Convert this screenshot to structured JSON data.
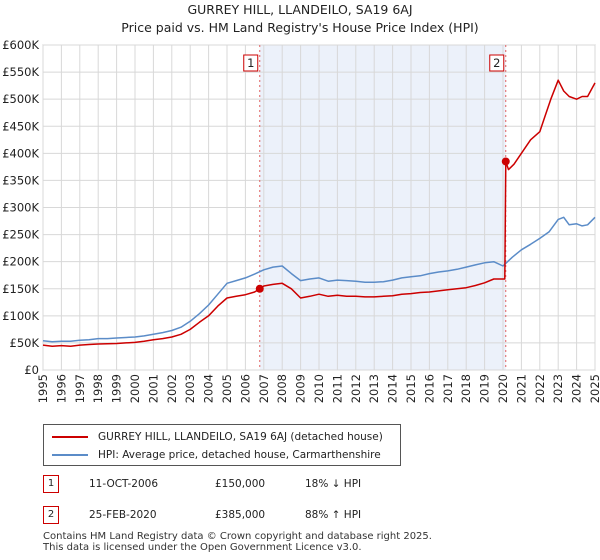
{
  "chart_data": {
    "type": "line",
    "title": "GURREY HILL, LLANDEILO, SA19 6AJ",
    "subtitle": "Price paid vs. HM Land Registry's House Price Index (HPI)",
    "xlim": [
      1995,
      2025
    ],
    "ylim": [
      0,
      600000
    ],
    "x_ticks": [
      "1995",
      "1996",
      "1997",
      "1998",
      "1999",
      "2000",
      "2001",
      "2002",
      "2003",
      "2004",
      "2005",
      "2006",
      "2007",
      "2008",
      "2009",
      "2010",
      "2011",
      "2012",
      "2013",
      "2014",
      "2015",
      "2016",
      "2017",
      "2018",
      "2019",
      "2020",
      "2021",
      "2022",
      "2023",
      "2024",
      "2025"
    ],
    "y_ticks": [
      {
        "value": 0,
        "label": "£0"
      },
      {
        "value": 50000,
        "label": "£50K"
      },
      {
        "value": 100000,
        "label": "£100K"
      },
      {
        "value": 150000,
        "label": "£150K"
      },
      {
        "value": 200000,
        "label": "£200K"
      },
      {
        "value": 250000,
        "label": "£250K"
      },
      {
        "value": 300000,
        "label": "£300K"
      },
      {
        "value": 350000,
        "label": "£350K"
      },
      {
        "value": 400000,
        "label": "£400K"
      },
      {
        "value": 450000,
        "label": "£450K"
      },
      {
        "value": 500000,
        "label": "£500K"
      },
      {
        "value": 550000,
        "label": "£550K"
      },
      {
        "value": 600000,
        "label": "£600K"
      }
    ],
    "grid": true,
    "shaded_region": [
      2006.78,
      2020.15
    ],
    "series": [
      {
        "name": "GURREY HILL, LLANDEILO, SA19 6AJ (detached house)",
        "color": "#cc0000",
        "x": [
          1995,
          1995.5,
          1996,
          1996.5,
          1997,
          1997.5,
          1998,
          1998.5,
          1999,
          1999.5,
          2000,
          2000.5,
          2001,
          2001.5,
          2002,
          2002.5,
          2003,
          2003.5,
          2004,
          2004.5,
          2005,
          2005.5,
          2006,
          2006.5,
          2006.78,
          2007,
          2007.5,
          2008,
          2008.5,
          2009,
          2009.5,
          2010,
          2010.5,
          2011,
          2011.5,
          2012,
          2012.5,
          2013,
          2013.5,
          2014,
          2014.5,
          2015,
          2015.5,
          2016,
          2016.5,
          2017,
          2017.5,
          2018,
          2018.5,
          2019,
          2019.5,
          2020.1,
          2020.15,
          2020.3,
          2020.6,
          2021,
          2021.5,
          2022,
          2022.3,
          2022.6,
          2023,
          2023.3,
          2023.6,
          2024,
          2024.3,
          2024.6,
          2025
        ],
        "y": [
          46000,
          44000,
          45000,
          44000,
          46000,
          47000,
          48000,
          48500,
          49000,
          50000,
          51000,
          53000,
          56000,
          58000,
          61000,
          66000,
          75000,
          88000,
          100000,
          118000,
          133000,
          136000,
          139000,
          144000,
          150000,
          155000,
          158000,
          160000,
          150000,
          133000,
          136000,
          140000,
          136000,
          138000,
          136000,
          136000,
          135000,
          135000,
          136000,
          137000,
          140000,
          141000,
          143000,
          144000,
          146000,
          148000,
          150000,
          152000,
          156000,
          161000,
          168000,
          168000,
          385000,
          370000,
          380000,
          400000,
          425000,
          440000,
          470000,
          500000,
          535000,
          515000,
          505000,
          500000,
          505000,
          505000,
          530000
        ]
      },
      {
        "name": "HPI: Average price, detached house, Carmarthenshire",
        "color": "#5b8cc8",
        "x": [
          1995,
          1995.5,
          1996,
          1996.5,
          1997,
          1997.5,
          1998,
          1998.5,
          1999,
          1999.5,
          2000,
          2000.5,
          2001,
          2001.5,
          2002,
          2002.5,
          2003,
          2003.5,
          2004,
          2004.5,
          2005,
          2005.5,
          2006,
          2006.5,
          2007,
          2007.5,
          2008,
          2008.5,
          2009,
          2009.5,
          2010,
          2010.5,
          2011,
          2011.5,
          2012,
          2012.5,
          2013,
          2013.5,
          2014,
          2014.5,
          2015,
          2015.5,
          2016,
          2016.5,
          2017,
          2017.5,
          2018,
          2018.5,
          2019,
          2019.5,
          2020,
          2020.5,
          2021,
          2021.5,
          2022,
          2022.5,
          2023,
          2023.3,
          2023.6,
          2024,
          2024.3,
          2024.6,
          2025
        ],
        "y": [
          54000,
          52000,
          53000,
          53000,
          55000,
          56000,
          58000,
          58000,
          59000,
          60000,
          61000,
          63000,
          66000,
          69000,
          73000,
          79000,
          90000,
          104000,
          120000,
          140000,
          160000,
          165000,
          170000,
          177000,
          185000,
          190000,
          192000,
          178000,
          165000,
          168000,
          170000,
          164000,
          166000,
          165000,
          164000,
          162000,
          162000,
          163000,
          166000,
          170000,
          172000,
          174000,
          178000,
          181000,
          183000,
          186000,
          190000,
          194000,
          198000,
          200000,
          192000,
          208000,
          222000,
          232000,
          243000,
          255000,
          278000,
          282000,
          268000,
          270000,
          266000,
          268000,
          282000
        ]
      }
    ],
    "annotations": [
      {
        "label": "1",
        "x": 2006.78
      },
      {
        "label": "2",
        "x": 2020.15
      }
    ],
    "points": [
      {
        "x": 2006.78,
        "y": 150000
      },
      {
        "x": 2020.15,
        "y": 385000
      }
    ]
  },
  "legend": [
    {
      "label": "GURREY HILL, LLANDEILO, SA19 6AJ (detached house)",
      "color": "#cc0000"
    },
    {
      "label": "HPI: Average price, detached house, Carmarthenshire",
      "color": "#5b8cc8"
    }
  ],
  "transactions": [
    {
      "num": "1",
      "date": "11-OCT-2006",
      "price": "£150,000",
      "hpi": "18% ↓ HPI"
    },
    {
      "num": "2",
      "date": "25-FEB-2020",
      "price": "£385,000",
      "hpi": "88% ↑ HPI"
    }
  ],
  "footer": {
    "line1": "Contains HM Land Registry data © Crown copyright and database right 2025.",
    "line2": "This data is licensed under the Open Government Licence v3.0."
  }
}
